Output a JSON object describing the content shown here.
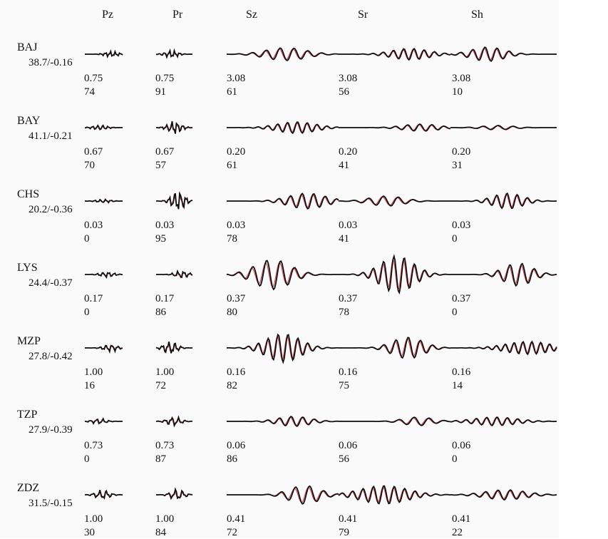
{
  "columns": [
    "Pz",
    "Pr",
    "Sz",
    "Sr",
    "Sh"
  ],
  "stations": [
    {
      "name": "BAJ",
      "dist": "38.7/-0.16",
      "amp": [
        "0.75",
        "0.75",
        "3.08",
        "3.08",
        "3.08"
      ],
      "corr": [
        "74",
        "91",
        "61",
        "56",
        "10"
      ]
    },
    {
      "name": "BAY",
      "dist": "41.1/-0.21",
      "amp": [
        "0.67",
        "0.67",
        "0.20",
        "0.20",
        "0.20"
      ],
      "corr": [
        "70",
        "57",
        "61",
        "41",
        "31"
      ]
    },
    {
      "name": "CHS",
      "dist": "20.2/-0.36",
      "amp": [
        "0.03",
        "0.03",
        "0.03",
        "0.03",
        "0.03"
      ],
      "corr": [
        "0",
        "95",
        "78",
        "41",
        "0"
      ]
    },
    {
      "name": "LYS",
      "dist": "24.4/-0.37",
      "amp": [
        "0.17",
        "0.17",
        "0.37",
        "0.37",
        "0.37"
      ],
      "corr": [
        "0",
        "86",
        "80",
        "78",
        "0"
      ]
    },
    {
      "name": "MZP",
      "dist": "27.8/-0.42",
      "amp": [
        "1.00",
        "1.00",
        "0.16",
        "0.16",
        "0.16"
      ],
      "corr": [
        "16",
        "72",
        "82",
        "75",
        "14"
      ]
    },
    {
      "name": "TZP",
      "dist": "27.9/-0.39",
      "amp": [
        "0.73",
        "0.73",
        "0.06",
        "0.06",
        "0.06"
      ],
      "corr": [
        "0",
        "87",
        "86",
        "56",
        "0"
      ]
    },
    {
      "name": "ZDZ",
      "dist": "31.5/-0.15",
      "amp": [
        "1.00",
        "1.00",
        "0.41",
        "0.41",
        "0.41"
      ],
      "corr": [
        "30",
        "84",
        "72",
        "79",
        "22"
      ]
    }
  ],
  "colors": {
    "observed": "#111111",
    "synthetic": "#d0454a"
  }
}
